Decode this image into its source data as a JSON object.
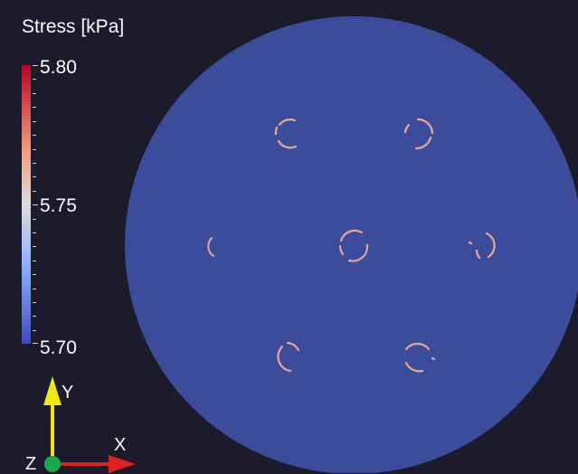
{
  "legend": {
    "title": "Stress [kPa]",
    "ticks": [
      "5.80",
      "5.75",
      "5.70"
    ],
    "gradient_colors": [
      "#b40426",
      "#f49a7b",
      "#dddcdc",
      "#8db0fe",
      "#3b4cc0"
    ]
  },
  "orientation_axes": {
    "x_label": "X",
    "y_label": "Y",
    "z_label": "Z",
    "x_color": "#e0201e",
    "y_color": "#f2e80c",
    "z_color": "#19a84a"
  },
  "scene": {
    "background": "#1b1b2b",
    "disk_color": "#3a4c9a",
    "ring_color": "#e8a890"
  }
}
